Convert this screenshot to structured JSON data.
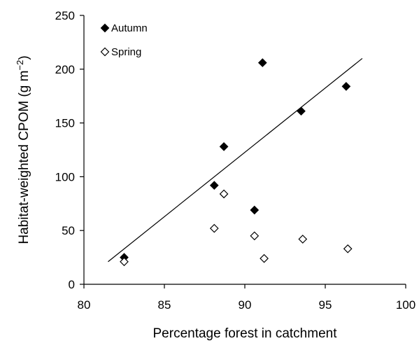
{
  "chart_data": {
    "type": "scatter",
    "xlabel": "Percentage forest in catchment",
    "ylabel_main": "Habitat-weighted CPOM (g m",
    "ylabel_sup": "−2",
    "ylabel_end": ")",
    "xlim": [
      80,
      100
    ],
    "ylim": [
      0,
      250
    ],
    "xticks": [
      "80",
      "85",
      "90",
      "95",
      "100"
    ],
    "yticks": [
      "0",
      "50",
      "100",
      "150",
      "200",
      "250"
    ],
    "grid": false,
    "legend_position": "top-left",
    "series": [
      {
        "name": "Autumn",
        "marker": "filled-diamond",
        "x": [
          82.5,
          88.1,
          88.7,
          90.6,
          91.1,
          93.5,
          96.3
        ],
        "y": [
          25,
          92,
          128,
          69,
          206,
          161,
          184
        ]
      },
      {
        "name": "Spring",
        "marker": "open-diamond",
        "x": [
          82.5,
          88.1,
          88.7,
          90.6,
          91.2,
          93.6,
          96.4
        ],
        "y": [
          21,
          52,
          84,
          45,
          24,
          42,
          33
        ]
      }
    ],
    "trendline": {
      "series": "Autumn",
      "x": [
        81.5,
        97.3
      ],
      "y": [
        21,
        210
      ]
    }
  }
}
